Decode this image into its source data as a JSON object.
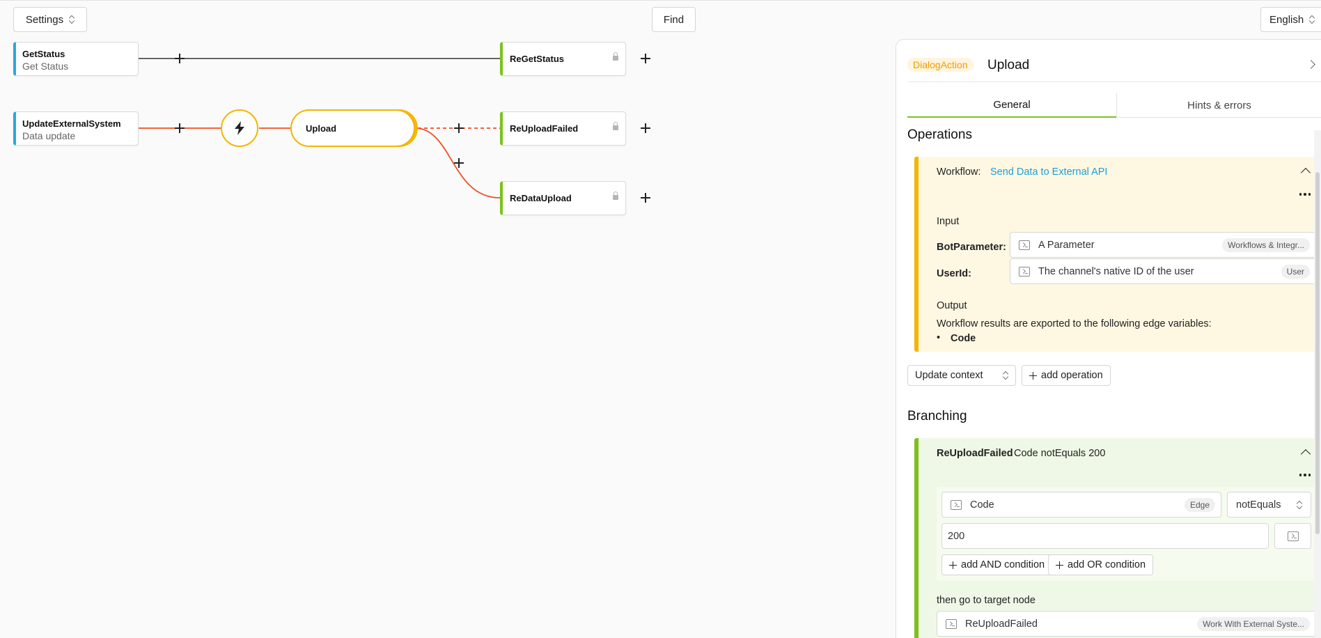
{
  "toolbar": {
    "settings_label": "Settings",
    "find_label": "Find",
    "language_label": "English"
  },
  "canvas": {
    "nodes": {
      "getstatus": {
        "title": "GetStatus",
        "subtitle": "Get Status"
      },
      "regetstatus": {
        "title": "ReGetStatus"
      },
      "updateexternalsystem": {
        "title": "UpdateExternalSystem",
        "subtitle": "Data update"
      },
      "upload": {
        "title": "Upload"
      },
      "reuploadfailed": {
        "title": "ReUploadFailed"
      },
      "redataupload": {
        "title": "ReDataUpload"
      }
    },
    "colors": {
      "edge_default": "#333333",
      "edge_active": "#f04e23",
      "trigger": "#f5b400",
      "node_blue": "#2aa8e0",
      "node_green": "#7cc21a"
    }
  },
  "panel": {
    "badge": "DialogAction",
    "title": "Upload",
    "tabs": [
      {
        "label": "General",
        "active": true
      },
      {
        "label": "Hints & errors",
        "active": false
      }
    ],
    "operations": {
      "heading": "Operations",
      "workflow_prefix": "Workflow:",
      "workflow_name": "Send Data to External API",
      "input_label": "Input",
      "params": [
        {
          "name": "BotParameter:",
          "value": "A Parameter",
          "tag": "Workflows & Integr..."
        },
        {
          "name": "UserId:",
          "value": "The channel's native ID of the user",
          "tag": "User"
        }
      ],
      "output_label": "Output",
      "output_desc": "Workflow results are exported to the following edge variables:",
      "output_vars": [
        "Code"
      ],
      "update_context": "Update context",
      "add_operation": "add operation"
    },
    "branching": {
      "heading": "Branching",
      "branch_target": "ReUploadFailed",
      "branch_condition": "Code notEquals 200",
      "cond_field": "Code",
      "cond_field_tag": "Edge",
      "cond_operator": "notEquals",
      "cond_value": "200",
      "add_and": "add AND condition",
      "add_or": "add OR condition",
      "then_label": "then go to target node",
      "target_value": "ReUploadFailed",
      "target_tag": "Work With External Syste..."
    }
  }
}
